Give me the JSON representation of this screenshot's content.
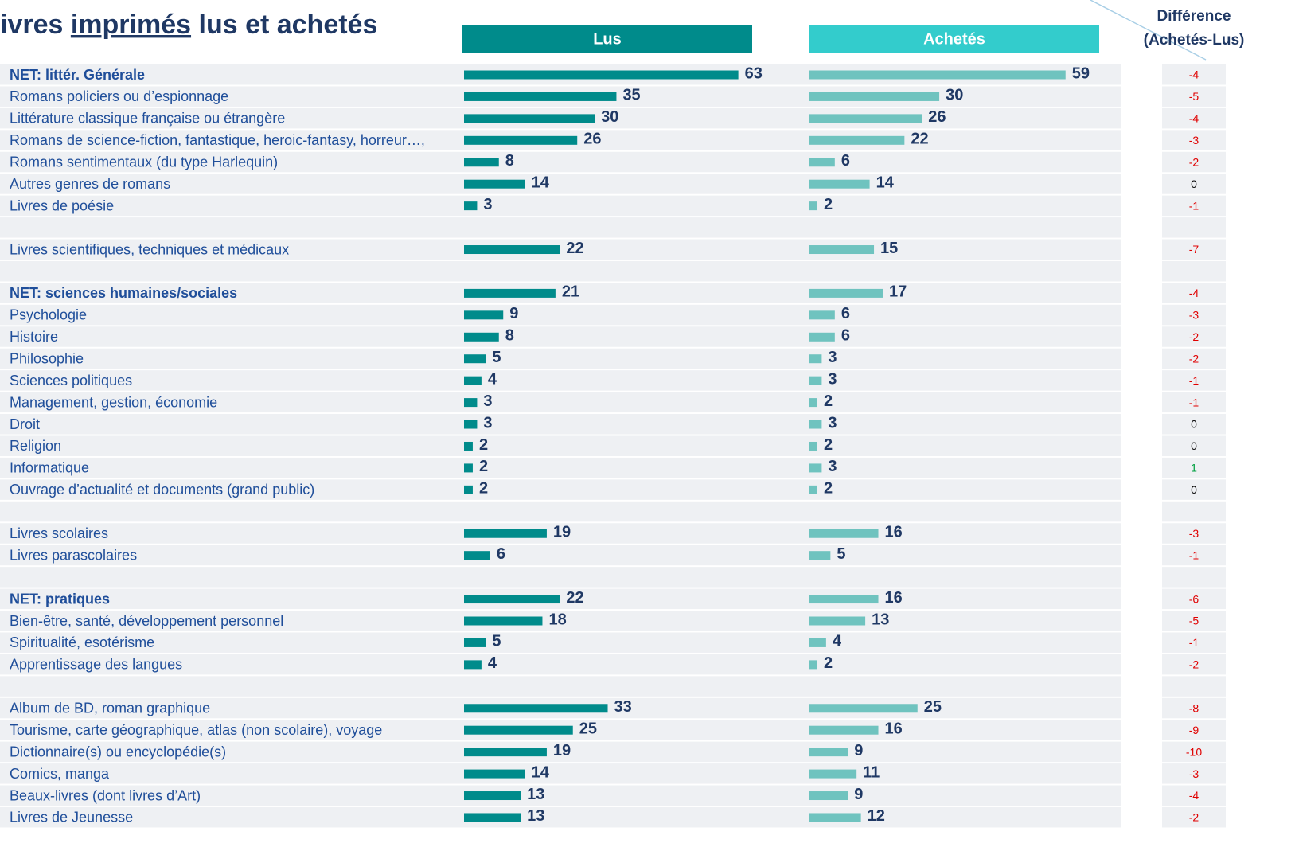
{
  "chart_data": {
    "type": "bar",
    "title_parts": [
      "ivres ",
      "imprimés",
      " lus et achetés"
    ],
    "categories": [
      "NET: littér. Générale",
      "Romans policiers ou d’espionnage",
      "Littérature classique française ou étrangère",
      "Romans de science-fiction, fantastique, heroic-fantasy, horreur…,",
      "Romans sentimentaux (du type Harlequin)",
      "Autres genres de romans",
      "Livres de poésie",
      null,
      "Livres scientifiques, techniques et médicaux",
      null,
      "NET: sciences humaines/sociales",
      "Psychologie",
      "Histoire",
      "Philosophie",
      "Sciences politiques",
      "Management, gestion, économie",
      "Droit",
      "Religion",
      "Informatique",
      "Ouvrage d’actualité et documents (grand public)",
      null,
      "Livres scolaires",
      "Livres parascolaires",
      null,
      "NET: pratiques",
      "Bien-être, santé, développement personnel",
      "Spiritualité, esotérisme",
      "Apprentissage des langues",
      null,
      "Album de BD, roman graphique",
      "Tourisme, carte géographique, atlas (non scolaire), voyage",
      "Dictionnaire(s) ou encyclopédie(s)",
      "Comics, manga",
      "Beaux-livres (dont livres d’Art)",
      "Livres de Jeunesse"
    ],
    "bold": [
      true,
      false,
      false,
      false,
      false,
      false,
      false,
      false,
      false,
      false,
      true,
      false,
      false,
      false,
      false,
      false,
      false,
      false,
      false,
      false,
      false,
      false,
      false,
      false,
      true,
      false,
      false,
      false,
      false,
      false,
      false,
      false,
      false,
      false,
      false
    ],
    "series": [
      {
        "name": "Lus",
        "color": "#008b8b",
        "header_color": "#008b8b",
        "values": [
          63,
          35,
          30,
          26,
          8,
          14,
          3,
          null,
          22,
          null,
          21,
          9,
          8,
          5,
          4,
          3,
          3,
          2,
          2,
          2,
          null,
          19,
          6,
          null,
          22,
          18,
          5,
          4,
          null,
          33,
          25,
          19,
          14,
          13,
          13
        ]
      },
      {
        "name": "Achetés",
        "color": "#6fc3bf",
        "header_color": "#33cccc",
        "values": [
          59,
          30,
          26,
          22,
          6,
          14,
          2,
          null,
          15,
          null,
          17,
          6,
          6,
          3,
          3,
          2,
          3,
          2,
          3,
          2,
          null,
          16,
          5,
          null,
          16,
          13,
          4,
          2,
          null,
          25,
          16,
          9,
          11,
          9,
          12
        ]
      }
    ],
    "differences": {
      "title_lines": [
        "Différence",
        "(Achetés-Lus)"
      ],
      "values": [
        -4,
        -5,
        -4,
        -3,
        -2,
        0,
        -1,
        null,
        -7,
        null,
        -4,
        -3,
        -2,
        -2,
        -1,
        -1,
        0,
        0,
        1,
        0,
        null,
        -3,
        -1,
        null,
        -6,
        -5,
        -1,
        -2,
        null,
        -8,
        -9,
        -10,
        -3,
        -4,
        -2
      ],
      "colors": {
        "negative": "#e00000",
        "zero": "#000000",
        "positive": "#00a040"
      }
    }
  }
}
